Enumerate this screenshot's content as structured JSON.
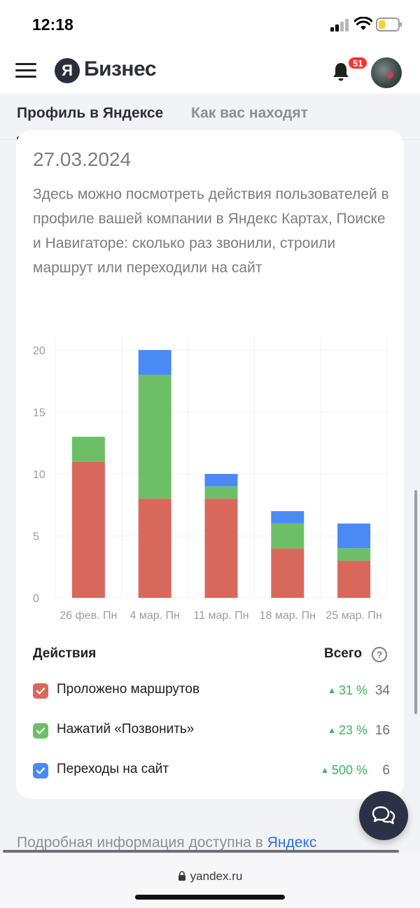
{
  "status_bar": {
    "time": "12:18"
  },
  "header": {
    "logo_letter": "Я",
    "logo_text": "Бизнес",
    "notifications_count": "51"
  },
  "tabs": [
    {
      "label": "Профиль в Яндексе",
      "active": true
    },
    {
      "label": "Как вас находят",
      "active": false
    }
  ],
  "card": {
    "date": "27.03.2024",
    "description": "Здесь можно посмотреть действия пользователей в профиле вашей компании в Яндекс Картах, Поиске и Навигаторе: сколько раз звонили, строили маршрут или переходили на сайт"
  },
  "chart_data": {
    "type": "bar",
    "stacked": true,
    "categories": [
      "26 фев. Пн",
      "4 мар. Пн",
      "11 мар. Пн",
      "18 мар. Пн",
      "25 мар. Пн"
    ],
    "series": [
      {
        "name": "Проложено маршрутов",
        "color": "#d9685c",
        "values": [
          11,
          8,
          8,
          4,
          3
        ]
      },
      {
        "name": "Нажатий «Позвонить»",
        "color": "#6dbf67",
        "values": [
          2,
          10,
          1,
          2,
          1
        ]
      },
      {
        "name": "Переходы на сайт",
        "color": "#4a8af4",
        "values": [
          0,
          2,
          1,
          1,
          2
        ]
      }
    ],
    "yticks": [
      "0",
      "5",
      "10",
      "15",
      "20"
    ],
    "ylim": [
      0,
      20
    ],
    "grid": true
  },
  "legend": {
    "actions_header": "Действия",
    "total_header": "Всего",
    "help": "?",
    "rows": [
      {
        "label": "Проложено маршрутов",
        "trend": "31 %",
        "total": "34",
        "color": "#d9685c"
      },
      {
        "label": "Нажатий «Позвонить»",
        "trend": "23 %",
        "total": "16",
        "color": "#6dbf67"
      },
      {
        "label": "Переходы на сайт",
        "trend": "500 %",
        "total": "6",
        "color": "#4a8af4"
      }
    ]
  },
  "footer": {
    "text": "Подробная информация доступна в ",
    "link": "Яндекс"
  },
  "browser": {
    "url": "yandex.ru"
  }
}
